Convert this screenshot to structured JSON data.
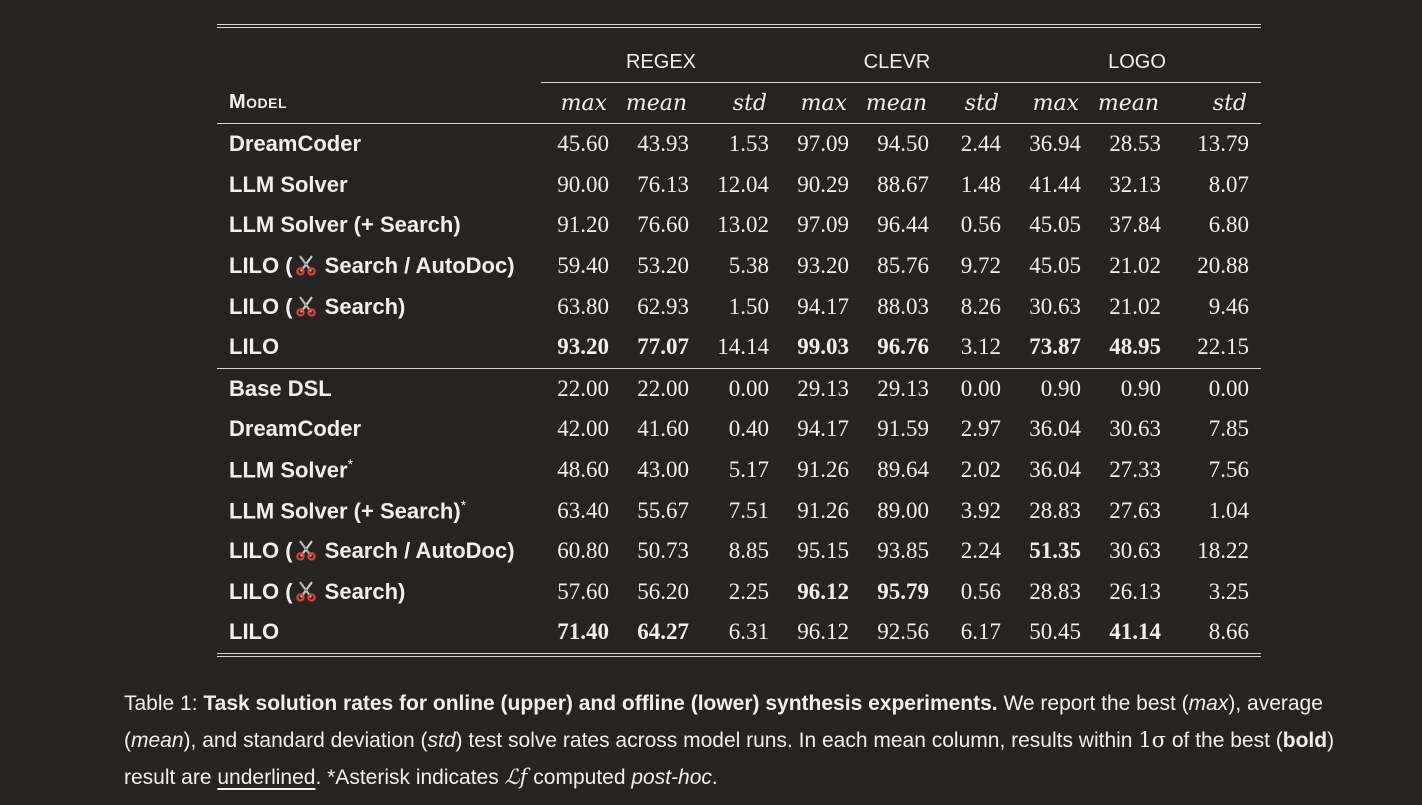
{
  "groups": [
    "REGEX",
    "CLEVR",
    "LOGO"
  ],
  "model_header": "Model",
  "col_headers": [
    "max",
    "mean",
    "std",
    "max",
    "mean",
    "std",
    "max",
    "mean",
    "std"
  ],
  "upper_rows": [
    {
      "model": "DreamCoder",
      "prefix": "",
      "suffix": "",
      "asterisk": "",
      "v": [
        "45.60",
        "43.93",
        "1.53",
        "97.09",
        "94.50",
        "2.44",
        "36.94",
        "28.53",
        "13.79"
      ]
    },
    {
      "model": "LLM Solver",
      "prefix": "",
      "suffix": "",
      "asterisk": "",
      "v": [
        "90.00",
        "76.13",
        "12.04",
        "90.29",
        "88.67",
        "1.48",
        "41.44",
        "32.13",
        "8.07"
      ]
    },
    {
      "model": "LLM Solver (+ Search)",
      "prefix": "",
      "suffix": "",
      "asterisk": "",
      "v": [
        "91.20",
        "76.60",
        "13.02",
        "97.09",
        "96.44",
        "0.56",
        "45.05",
        "37.84",
        "6.80"
      ]
    },
    {
      "model": "",
      "prefix": "LILO (",
      "suffix": " Search / AutoDoc)",
      "asterisk": "",
      "v": [
        "59.40",
        "53.20",
        "5.38",
        "93.20",
        "85.76",
        "9.72",
        "45.05",
        "21.02",
        "20.88"
      ]
    },
    {
      "model": "",
      "prefix": "LILO (",
      "suffix": " Search)",
      "asterisk": "",
      "v": [
        "63.80",
        "62.93",
        "1.50",
        "94.17",
        "88.03",
        "8.26",
        "30.63",
        "21.02",
        "9.46"
      ]
    },
    {
      "model": "",
      "prefix": "LILO",
      "suffix": "",
      "asterisk": "",
      "v": [
        "93.20",
        "77.07",
        "14.14",
        "99.03",
        "96.76",
        "3.12",
        "73.87",
        "48.95",
        "22.15"
      ]
    }
  ],
  "lower_rows": [
    {
      "model": "Base DSL",
      "prefix": "",
      "suffix": "",
      "asterisk": "",
      "v": [
        "22.00",
        "22.00",
        "0.00",
        "29.13",
        "29.13",
        "0.00",
        "0.90",
        "0.90",
        "0.00"
      ]
    },
    {
      "model": "DreamCoder",
      "prefix": "",
      "suffix": "",
      "asterisk": "",
      "v": [
        "42.00",
        "41.60",
        "0.40",
        "94.17",
        "91.59",
        "2.97",
        "36.04",
        "30.63",
        "7.85"
      ]
    },
    {
      "model": "LLM Solver",
      "prefix": "",
      "suffix": "",
      "asterisk": "*",
      "v": [
        "48.60",
        "43.00",
        "5.17",
        "91.26",
        "89.64",
        "2.02",
        "36.04",
        "27.33",
        "7.56"
      ]
    },
    {
      "model": "LLM Solver (+ Search)",
      "prefix": "",
      "suffix": "",
      "asterisk": "*",
      "v": [
        "63.40",
        "55.67",
        "7.51",
        "91.26",
        "89.00",
        "3.92",
        "28.83",
        "27.63",
        "1.04"
      ]
    },
    {
      "model": "",
      "prefix": "LILO (",
      "suffix": " Search / AutoDoc)",
      "asterisk": "",
      "v": [
        "60.80",
        "50.73",
        "8.85",
        "95.15",
        "93.85",
        "2.24",
        "51.35",
        "30.63",
        "18.22"
      ]
    },
    {
      "model": "",
      "prefix": "LILO (",
      "suffix": " Search)",
      "asterisk": "",
      "v": [
        "57.60",
        "56.20",
        "2.25",
        "96.12",
        "95.79",
        "0.56",
        "28.83",
        "26.13",
        "3.25"
      ]
    },
    {
      "model": "",
      "prefix": "LILO",
      "suffix": "",
      "asterisk": "",
      "v": [
        "71.40",
        "64.27",
        "6.31",
        "96.12",
        "92.56",
        "6.17",
        "50.45",
        "41.14",
        "8.66"
      ]
    }
  ],
  "upper_bold": [
    [
      5,
      0
    ],
    [
      5,
      1
    ],
    [
      5,
      3
    ],
    [
      5,
      4
    ],
    [
      5,
      6
    ],
    [
      5,
      7
    ]
  ],
  "lower_bold": [
    [
      6,
      0
    ],
    [
      6,
      1
    ],
    [
      5,
      3
    ],
    [
      5,
      4
    ],
    [
      4,
      6
    ],
    [
      6,
      7
    ]
  ],
  "icon": "scissors-icon",
  "caption": {
    "lead": "Table 1: ",
    "bold": "Task solution rates for online (upper) and offline (lower) synthesis experiments.",
    "t1": " We report the best (",
    "i1": "max",
    "t2": "), average (",
    "i2": "mean",
    "t3": "), and standard deviation (",
    "i3": "std",
    "t4": ") test solve rates across model runs. In each mean column, results within ",
    "sigma": "1σ",
    "t5": " of the best (",
    "b2": "bold",
    "t6": ") result are ",
    "u1": "underlined",
    "t7": ". *Asterisk indicates ",
    "math": "ℒf",
    "t8": " computed ",
    "i4": "post-hoc",
    "t9": "."
  }
}
